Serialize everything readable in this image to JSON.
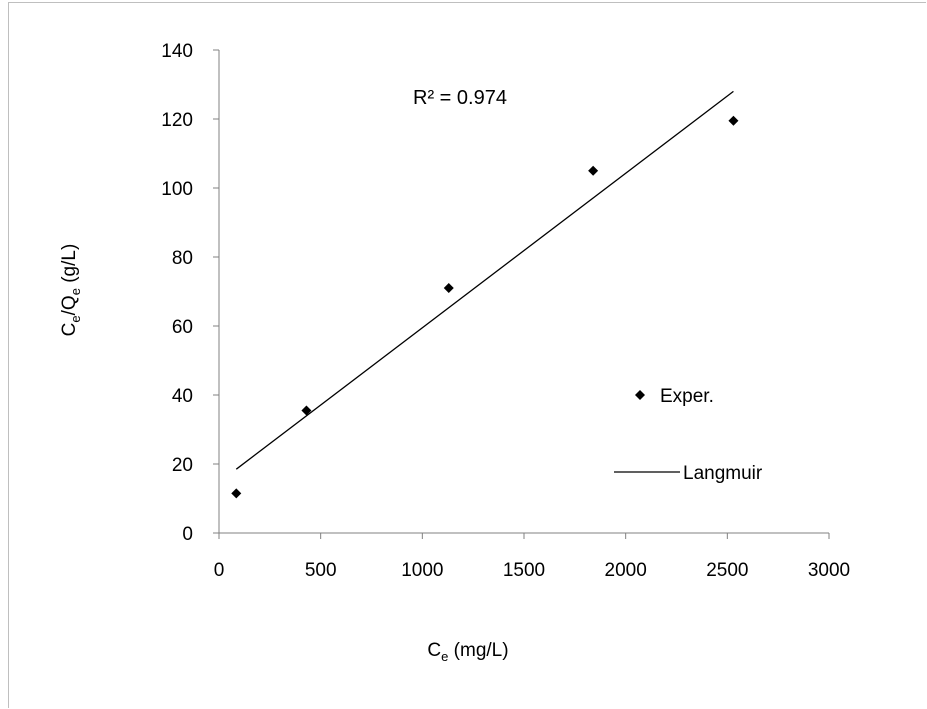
{
  "chart_data": {
    "type": "scatter",
    "title": "",
    "xlabel": {
      "main": "C",
      "sub": "e",
      "rest": " (mg/L)"
    },
    "ylabel": {
      "a": "C",
      "a_sub": "e",
      "b": "/Q",
      "b_sub": "e",
      "rest": " (g/L)"
    },
    "xlim": [
      0,
      3000
    ],
    "ylim": [
      0,
      140
    ],
    "x_ticks": [
      0,
      500,
      1000,
      1500,
      2000,
      2500,
      3000
    ],
    "y_ticks": [
      0,
      20,
      40,
      60,
      80,
      100,
      120,
      140
    ],
    "grid": false,
    "legend_position": "right",
    "series": [
      {
        "name": "Exper.",
        "kind": "points",
        "marker": "diamond",
        "x": [
          85,
          430,
          1130,
          1840,
          2530
        ],
        "y": [
          11.5,
          35.5,
          71,
          105,
          119.5
        ]
      },
      {
        "name": "Langmuir",
        "kind": "line",
        "x": [
          85,
          2530
        ],
        "y": [
          18.5,
          128
        ]
      }
    ],
    "annotation": "R² = 0.974",
    "colors": {
      "marks": "#000000",
      "axis": "#808080",
      "frame": "#bfbfbf"
    }
  }
}
